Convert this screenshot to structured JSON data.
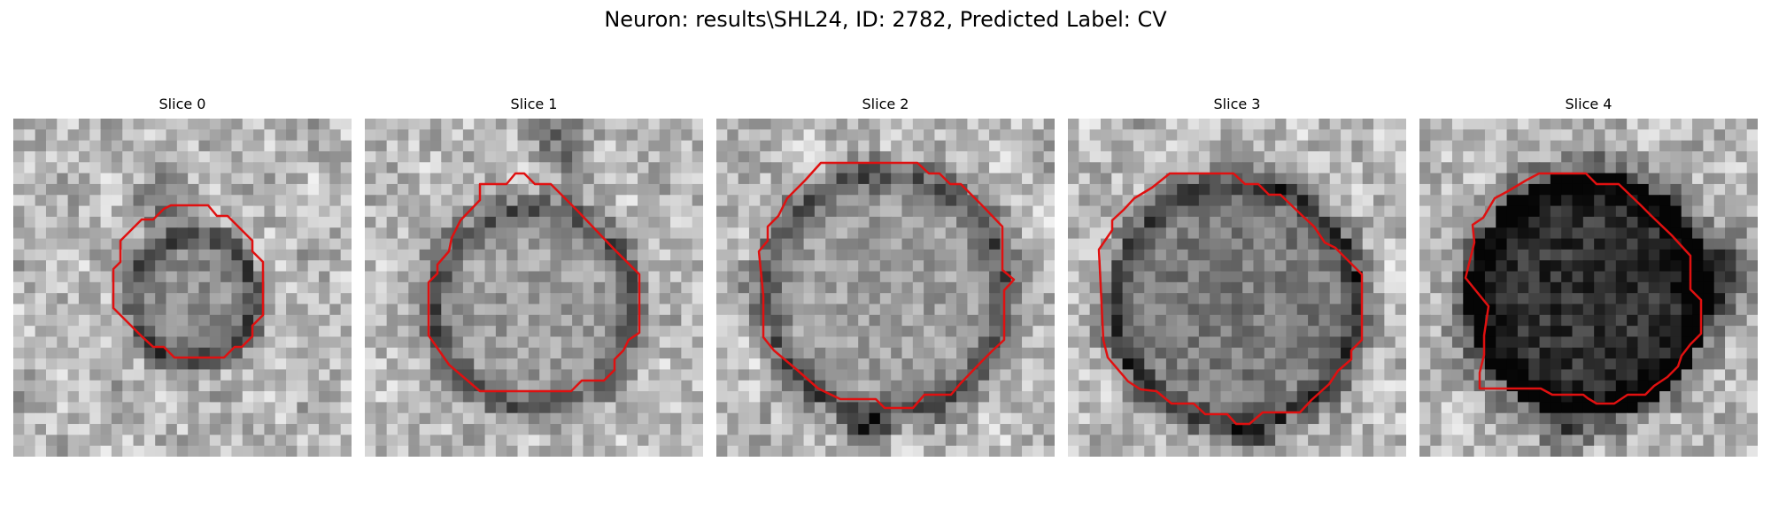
{
  "figure": {
    "title": "Neuron: results\\SHL24, ID: 2782, Predicted Label: CV"
  },
  "panels": [
    {
      "title": "Slice 0"
    },
    {
      "title": "Slice 1"
    },
    {
      "title": "Slice 2"
    },
    {
      "title": "Slice 3"
    },
    {
      "title": "Slice 4"
    }
  ],
  "colors": {
    "contour": "#e01010",
    "background": "#ffffff"
  }
}
